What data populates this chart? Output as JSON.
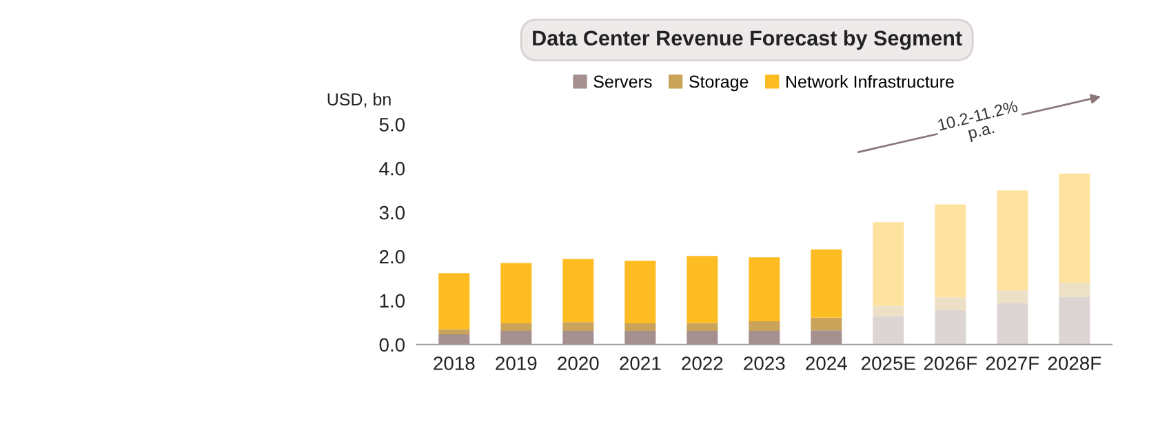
{
  "chart_data": {
    "type": "bar",
    "title": "Data Center Revenue Forecast by Segment",
    "ylabel": "USD, bn",
    "categories": [
      "2018",
      "2019",
      "2020",
      "2021",
      "2022",
      "2023",
      "2024",
      "2025E",
      "2026F",
      "2027F",
      "2028F"
    ],
    "stacked": true,
    "series": [
      {
        "name": "Servers",
        "color": "#a58f8f",
        "colors": [
          "#a58f8f",
          "#a58f8f",
          "#a58f8f",
          "#a58f8f",
          "#a58f8f",
          "#a58f8f",
          "#a58f8f",
          "#ddd5d3",
          "#ddd5d3",
          "#ddd5d3",
          "#ddd5d3"
        ],
        "values": [
          0.23,
          0.31,
          0.31,
          0.31,
          0.31,
          0.31,
          0.32,
          0.64,
          0.78,
          0.94,
          1.08
        ]
      },
      {
        "name": "Storage",
        "color": "#c9a35a",
        "colors": [
          "#c9a35a",
          "#c9a35a",
          "#c9a35a",
          "#c9a35a",
          "#c9a35a",
          "#c9a35a",
          "#c9a35a",
          "#ece0c6",
          "#ece0c6",
          "#ece0c6",
          "#ece0c6"
        ],
        "values": [
          0.12,
          0.17,
          0.2,
          0.17,
          0.18,
          0.22,
          0.29,
          0.24,
          0.29,
          0.29,
          0.32
        ]
      },
      {
        "name": "Network Infrastructure",
        "color": "#fdbd22",
        "colors": [
          "#fdbd22",
          "#fdbd22",
          "#fdbd22",
          "#fdbd22",
          "#fdbd22",
          "#fdbd22",
          "#fdbd22",
          "#fee3a0",
          "#fee3a0",
          "#fee3a0",
          "#fee3a0"
        ],
        "values": [
          1.27,
          1.37,
          1.43,
          1.42,
          1.52,
          1.45,
          1.55,
          1.9,
          2.11,
          2.27,
          2.48
        ]
      }
    ],
    "ylim": [
      0,
      5
    ],
    "yticks": [
      {
        "value": 0,
        "label": "0.0"
      },
      {
        "value": 1,
        "label": "1.0"
      },
      {
        "value": 2,
        "label": "2.0"
      },
      {
        "value": 3,
        "label": "3.0"
      },
      {
        "value": 4,
        "label": "4.0"
      },
      {
        "value": 5,
        "label": "5.0"
      }
    ],
    "grid": false,
    "legend": "top",
    "annotations": [
      "10.2-11.2%\np.a."
    ]
  }
}
